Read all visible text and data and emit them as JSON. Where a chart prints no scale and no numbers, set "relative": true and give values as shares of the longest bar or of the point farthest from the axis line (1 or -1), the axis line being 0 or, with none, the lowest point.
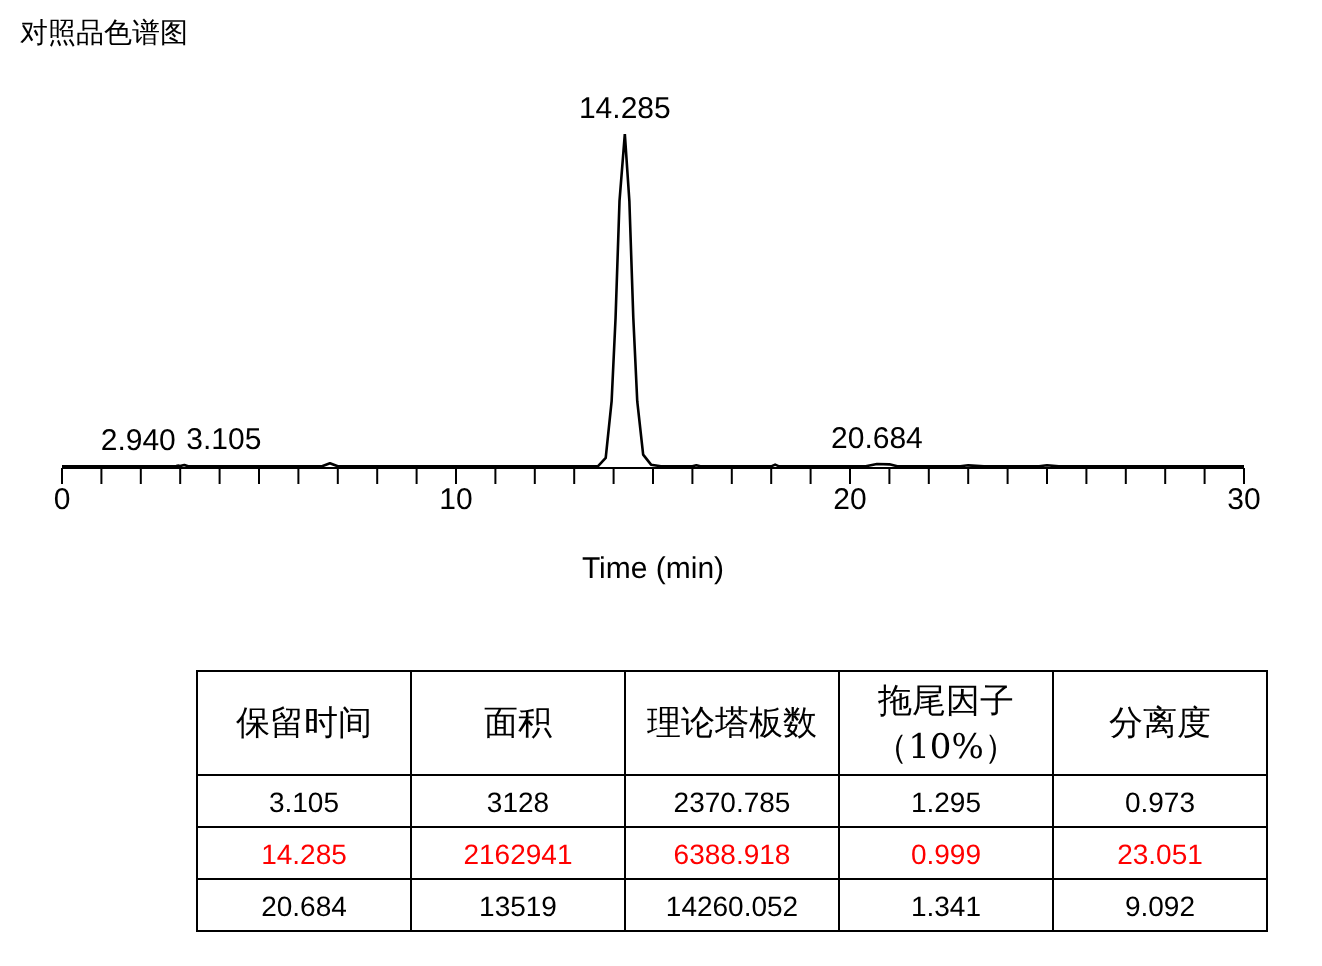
{
  "chart_data": [
    {
      "type": "line",
      "title": "对照品色谱图",
      "xlabel": "Time (min)",
      "relative": true,
      "x": [
        0,
        1,
        2,
        2.9,
        2.94,
        3.0,
        3.105,
        3.2,
        3.4,
        5,
        6.6,
        6.8,
        7.0,
        9,
        12,
        13.6,
        13.8,
        13.95,
        14.05,
        14.15,
        14.285,
        14.4,
        14.5,
        14.6,
        14.75,
        14.95,
        15.2,
        16.0,
        16.1,
        16.2,
        18.0,
        18.1,
        18.2,
        20.4,
        20.684,
        21.0,
        21.2,
        22.8,
        23.0,
        23.4,
        24.8,
        25.0,
        25.3,
        27,
        30
      ],
      "series": [
        {
          "color": "#000000",
          "values": [
            0.005,
            0.005,
            0.005,
            0.006,
            0.007,
            0.006,
            0.009,
            0.005,
            0.005,
            0.005,
            0.005,
            0.014,
            0.005,
            0.005,
            0.005,
            0.005,
            0.03,
            0.2,
            0.45,
            0.8,
            1,
            0.8,
            0.45,
            0.2,
            0.04,
            0.01,
            0.005,
            0.005,
            0.008,
            0.005,
            0.005,
            0.01,
            0.005,
            0.005,
            0.012,
            0.011,
            0.005,
            0.005,
            0.008,
            0.005,
            0.005,
            0.008,
            0.005,
            0.005,
            0.005
          ]
        }
      ],
      "xlim": [
        0,
        30
      ],
      "xticks": [
        0,
        {
          "value": 1,
          "label": null
        },
        {
          "value": 2,
          "label": null
        },
        {
          "value": 3,
          "label": null
        },
        {
          "value": 4,
          "label": null
        },
        {
          "value": 5,
          "label": null
        },
        {
          "value": 6,
          "label": null
        },
        {
          "value": 7,
          "label": null
        },
        {
          "value": 8,
          "label": null
        },
        {
          "value": 9,
          "label": null
        },
        10,
        {
          "value": 11,
          "label": null
        },
        {
          "value": 12,
          "label": null
        },
        {
          "value": 13,
          "label": null
        },
        {
          "value": 14,
          "label": null
        },
        {
          "value": 15,
          "label": null
        },
        {
          "value": 16,
          "label": null
        },
        {
          "value": 17,
          "label": null
        },
        {
          "value": 18,
          "label": null
        },
        {
          "value": 19,
          "label": null
        },
        20,
        {
          "value": 21,
          "label": null
        },
        {
          "value": 22,
          "label": null
        },
        {
          "value": 23,
          "label": null
        },
        {
          "value": 24,
          "label": null
        },
        {
          "value": 25,
          "label": null
        },
        {
          "value": 26,
          "label": null
        },
        {
          "value": 27,
          "label": null
        },
        {
          "value": 28,
          "label": null
        },
        {
          "value": 29,
          "label": null
        },
        30
      ],
      "annotations": [
        {
          "text": "2.940",
          "x": 2.94,
          "y": 0.007
        },
        {
          "text": "3.105",
          "x": 3.105,
          "y": 0.009
        },
        {
          "text": "14.285",
          "x": 14.285,
          "y": 1
        },
        {
          "text": "20.684",
          "x": 20.684,
          "y": 0.012
        }
      ],
      "grid": false,
      "legend": false,
      "marker": "none",
      "line_style": "solid"
    },
    {
      "type": "other",
      "categories": [
        "保留时间",
        "面积",
        "理论塔板数",
        "拖尾因子（10%）",
        "分离度"
      ],
      "cell_labels": [
        [
          "3.105",
          "3128",
          "2370.785",
          "1.295",
          "0.973"
        ],
        [
          "14.285",
          "2162941",
          "6388.918",
          "0.999",
          "23.051"
        ],
        [
          "20.684",
          "13519",
          "14260.052",
          "1.341",
          "9.092"
        ]
      ],
      "colors": [
        "#000000",
        "#ff0000",
        "#000000"
      ]
    }
  ]
}
